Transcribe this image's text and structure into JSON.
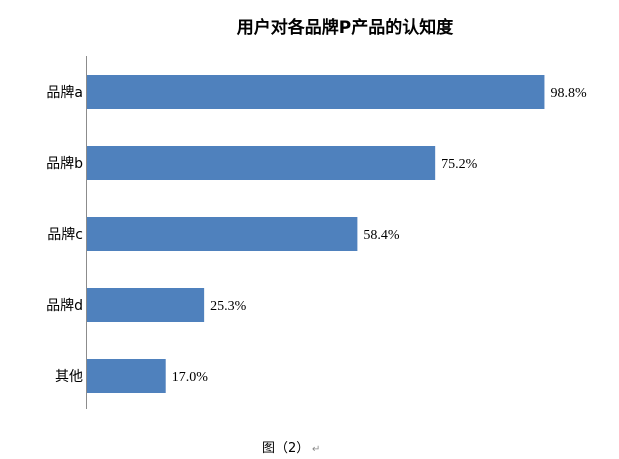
{
  "chart_data": {
    "type": "bar",
    "orientation": "horizontal",
    "title": "用户对各品牌P产品的认知度",
    "categories": [
      "品牌a",
      "品牌b",
      "品牌c",
      "品牌d",
      "其他"
    ],
    "values": [
      98.8,
      75.2,
      58.4,
      25.3,
      17.0
    ],
    "value_labels": [
      "98.8%",
      "75.2%",
      "58.4%",
      "25.3%",
      "17.0%"
    ],
    "unit": "%",
    "xlabel": "",
    "ylabel": "",
    "xlim": [
      0,
      100
    ],
    "grid": false,
    "legend": "none",
    "bar_color": "#4F81BD"
  },
  "caption": {
    "text": "图（2）",
    "return_mark": "↵"
  }
}
